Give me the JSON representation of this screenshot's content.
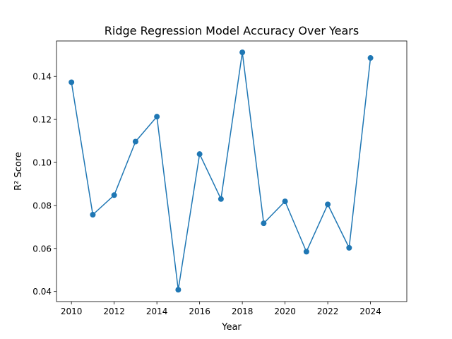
{
  "chart_data": {
    "type": "line",
    "title": "Ridge Regression Model Accuracy Over Years",
    "xlabel": "Year",
    "ylabel": "R² Score",
    "xlim": [
      2009.3,
      2025.7
    ],
    "ylim": [
      0.0353,
      0.1565
    ],
    "x_ticks": [
      2010,
      2012,
      2014,
      2016,
      2018,
      2020,
      2022,
      2024
    ],
    "y_ticks": [
      0.04,
      0.06,
      0.08,
      0.1,
      0.12,
      0.14
    ],
    "y_tick_labels": [
      "0.04",
      "0.06",
      "0.08",
      "0.10",
      "0.12",
      "0.14"
    ],
    "grid": false,
    "series": [
      {
        "color": "#1f77b4",
        "marker": "circle",
        "x": [
          2010,
          2011,
          2012,
          2013,
          2014,
          2015,
          2016,
          2017,
          2018,
          2019,
          2020,
          2021,
          2022,
          2023,
          2024
        ],
        "y": [
          0.1373,
          0.0757,
          0.0848,
          0.1097,
          0.1213,
          0.0408,
          0.1039,
          0.083,
          0.1512,
          0.0717,
          0.0819,
          0.0585,
          0.0805,
          0.0603,
          0.1486
        ]
      }
    ]
  }
}
